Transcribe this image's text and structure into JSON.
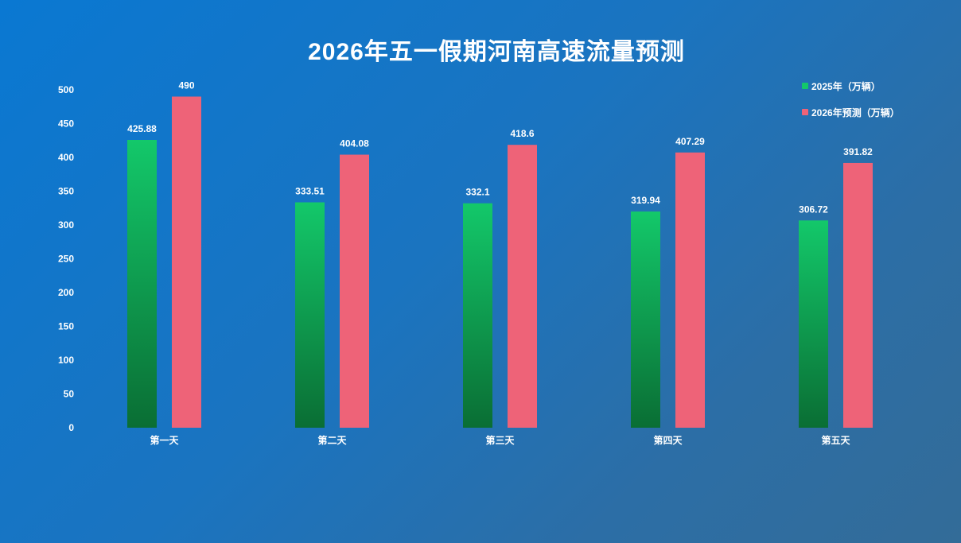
{
  "title": "2026年五一假期河南高速流量预测",
  "legend": {
    "items": [
      {
        "label": "2025年（万辆）",
        "color": "#13c86a"
      },
      {
        "label": "2026年预测（万辆）",
        "color": "#ee6378"
      }
    ]
  },
  "chart_data": {
    "type": "bar",
    "title": "2026年五一假期河南高速流量预测",
    "categories": [
      "第一天",
      "第二天",
      "第三天",
      "第四天",
      "第五天"
    ],
    "series": [
      {
        "name": "2025年（万辆）",
        "values": [
          425.88,
          333.51,
          332.1,
          319.94,
          306.72
        ],
        "color": "#13c86a",
        "color_bottom": "#0a6e34"
      },
      {
        "name": "2026年预测（万辆）",
        "values": [
          490,
          404.08,
          418.6,
          407.29,
          391.82
        ],
        "color": "#ee6378"
      }
    ],
    "y_ticks": [
      "0",
      "50",
      "100",
      "150",
      "200",
      "250",
      "300",
      "350",
      "400",
      "450",
      "500"
    ],
    "ylim": [
      0,
      500
    ],
    "grid": false,
    "legend_position": "top-right",
    "xlabel": "",
    "ylabel": ""
  }
}
